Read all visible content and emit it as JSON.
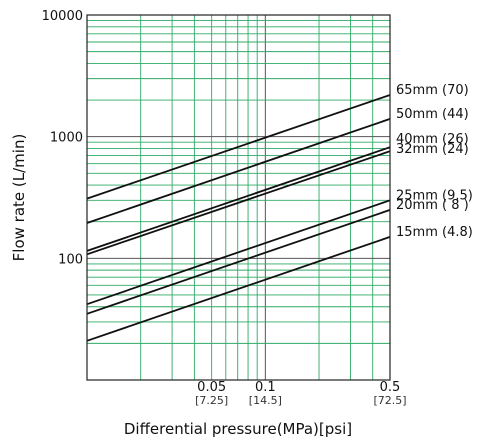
{
  "chart_data": {
    "type": "line",
    "title": "",
    "xlabel": "Differential pressure(MPa)[psi]",
    "ylabel": "Flow rate (L/min)",
    "x_scale": "log",
    "y_scale": "log",
    "xlim": [
      0.01,
      0.5
    ],
    "ylim": [
      10,
      10000
    ],
    "grid": true,
    "y_ticks": [
      {
        "value": 100,
        "label": "100"
      },
      {
        "value": 1000,
        "label": "1000"
      },
      {
        "value": 10000,
        "label": "10000"
      }
    ],
    "x_ticks": [
      {
        "value": 0.05,
        "label": "0.05",
        "sublabel": "[7.25]"
      },
      {
        "value": 0.1,
        "label": "0.1",
        "sublabel": "[14.5]"
      },
      {
        "value": 0.5,
        "label": "0.5",
        "sublabel": "[72.5]"
      }
    ],
    "series": [
      {
        "name": "65mm (70)",
        "x": [
          0.01,
          0.5
        ],
        "y": [
          310,
          2200
        ]
      },
      {
        "name": "50mm (44)",
        "x": [
          0.01,
          0.5
        ],
        "y": [
          195,
          1400
        ]
      },
      {
        "name": "40mm (26)",
        "x": [
          0.01,
          0.5
        ],
        "y": [
          115,
          820
        ]
      },
      {
        "name": "32mm (24)",
        "x": [
          0.01,
          0.5
        ],
        "y": [
          108,
          760
        ]
      },
      {
        "name": "25mm (9.5)",
        "x": [
          0.01,
          0.5
        ],
        "y": [
          42,
          300
        ]
      },
      {
        "name": "20mm ( 8 )",
        "x": [
          0.01,
          0.5
        ],
        "y": [
          35,
          250
        ]
      },
      {
        "name": "15mm (4.8)",
        "x": [
          0.01,
          0.5
        ],
        "y": [
          21,
          150
        ]
      }
    ],
    "colors": {
      "grid": "#2eaa66",
      "major_grid": "#555555",
      "line": "#111111"
    }
  }
}
